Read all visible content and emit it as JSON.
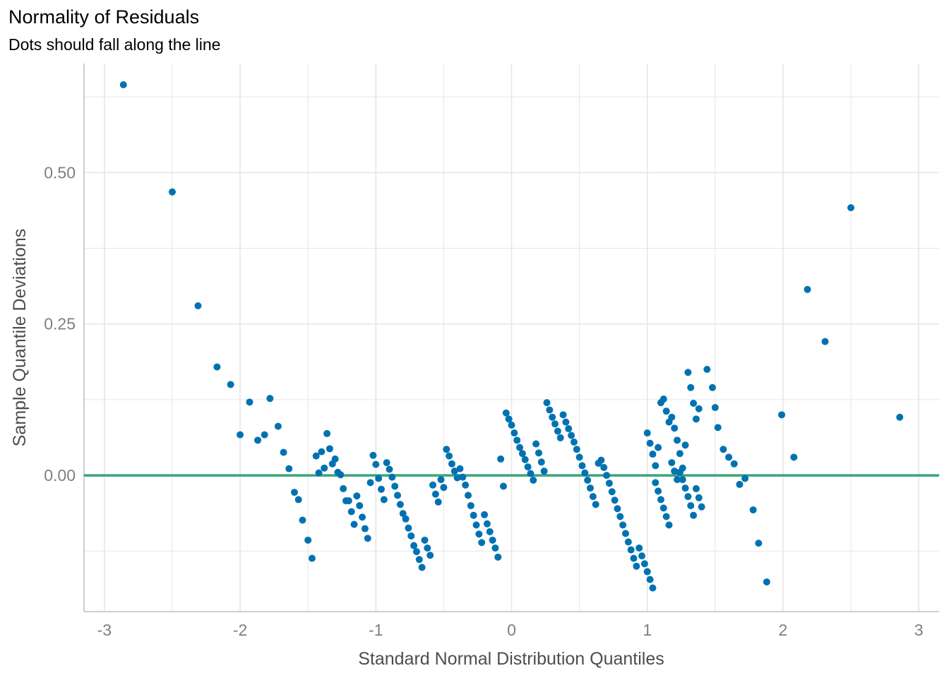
{
  "chart": {
    "title": "Normality of Residuals",
    "subtitle": "Dots should fall along the line",
    "xlabel": "Standard Normal Distribution Quantiles",
    "ylabel": "Sample Quantile Deviations"
  },
  "colors": {
    "points": "#0072B2",
    "reference_line": "#3AA57A",
    "grid": "#E6E6E6",
    "axis": "#BDBDBD",
    "tick_text": "#7F7F7F",
    "label_text": "#4D4D4D"
  },
  "chart_data": {
    "type": "scatter",
    "title": "Normality of Residuals",
    "subtitle": "Dots should fall along the line",
    "xlabel": "Standard Normal Distribution Quantiles",
    "ylabel": "Sample Quantile Deviations",
    "xlim": [
      -3.15,
      3.15
    ],
    "ylim": [
      -0.225,
      0.68
    ],
    "x_ticks": [
      -3,
      -2,
      -1,
      0,
      1,
      2,
      3
    ],
    "x_tick_labels": [
      "-3",
      "-2",
      "-1",
      "0",
      "1",
      "2",
      "3"
    ],
    "y_ticks": [
      0.0,
      0.25,
      0.5
    ],
    "y_tick_labels": [
      "0.00",
      "0.25",
      "0.50"
    ],
    "grid": true,
    "reference_line": {
      "y": 0.0
    },
    "points": [
      [
        -2.86,
        0.645
      ],
      [
        -2.5,
        0.468
      ],
      [
        -2.31,
        0.28
      ],
      [
        -2.17,
        0.179
      ],
      [
        -2.07,
        0.15
      ],
      [
        -2.0,
        0.067
      ],
      [
        -1.93,
        0.121
      ],
      [
        -1.87,
        0.058
      ],
      [
        -1.82,
        0.067
      ],
      [
        -1.78,
        0.127
      ],
      [
        -1.72,
        0.081
      ],
      [
        -1.68,
        0.038
      ],
      [
        -1.64,
        0.011
      ],
      [
        -1.6,
        -0.028
      ],
      [
        -1.57,
        -0.04
      ],
      [
        -1.54,
        -0.074
      ],
      [
        -1.5,
        -0.107
      ],
      [
        -1.47,
        -0.137
      ],
      [
        -1.44,
        0.032
      ],
      [
        -1.42,
        0.004
      ],
      [
        -1.4,
        0.039
      ],
      [
        -1.38,
        0.012
      ],
      [
        -1.36,
        0.069
      ],
      [
        -1.34,
        0.044
      ],
      [
        -1.32,
        0.019
      ],
      [
        -1.3,
        0.027
      ],
      [
        -1.28,
        0.005
      ],
      [
        -1.26,
        0.001
      ],
      [
        -1.24,
        -0.022
      ],
      [
        -1.22,
        -0.042
      ],
      [
        -1.2,
        -0.042
      ],
      [
        -1.18,
        -0.06
      ],
      [
        -1.16,
        -0.081
      ],
      [
        -1.14,
        -0.034
      ],
      [
        -1.12,
        -0.05
      ],
      [
        -1.1,
        -0.069
      ],
      [
        -1.08,
        -0.088
      ],
      [
        -1.06,
        -0.104
      ],
      [
        -1.04,
        -0.012
      ],
      [
        -1.02,
        0.033
      ],
      [
        -1.0,
        0.018
      ],
      [
        -0.98,
        -0.005
      ],
      [
        -0.96,
        -0.023
      ],
      [
        -0.94,
        -0.04
      ],
      [
        -0.92,
        0.021
      ],
      [
        -0.9,
        0.01
      ],
      [
        -0.88,
        -0.003
      ],
      [
        -0.86,
        -0.018
      ],
      [
        -0.84,
        -0.033
      ],
      [
        -0.82,
        -0.048
      ],
      [
        -0.8,
        -0.063
      ],
      [
        -0.78,
        -0.072
      ],
      [
        -0.76,
        -0.087
      ],
      [
        -0.74,
        -0.1
      ],
      [
        -0.72,
        -0.116
      ],
      [
        -0.7,
        -0.126
      ],
      [
        -0.68,
        -0.139
      ],
      [
        -0.66,
        -0.152
      ],
      [
        -0.64,
        -0.107
      ],
      [
        -0.62,
        -0.12
      ],
      [
        -0.6,
        -0.132
      ],
      [
        -0.58,
        -0.016
      ],
      [
        -0.56,
        -0.031
      ],
      [
        -0.54,
        -0.044
      ],
      [
        -0.52,
        -0.007
      ],
      [
        -0.5,
        -0.02
      ],
      [
        -0.48,
        0.043
      ],
      [
        -0.46,
        0.032
      ],
      [
        -0.44,
        0.019
      ],
      [
        -0.42,
        0.007
      ],
      [
        -0.4,
        -0.004
      ],
      [
        -0.38,
        0.011
      ],
      [
        -0.36,
        -0.003
      ],
      [
        -0.34,
        -0.016
      ],
      [
        -0.32,
        -0.033
      ],
      [
        -0.3,
        -0.05
      ],
      [
        -0.28,
        -0.066
      ],
      [
        -0.26,
        -0.082
      ],
      [
        -0.24,
        -0.097
      ],
      [
        -0.22,
        -0.111
      ],
      [
        -0.2,
        -0.065
      ],
      [
        -0.18,
        -0.08
      ],
      [
        -0.16,
        -0.093
      ],
      [
        -0.14,
        -0.107
      ],
      [
        -0.12,
        -0.12
      ],
      [
        -0.1,
        -0.135
      ],
      [
        -0.08,
        0.027
      ],
      [
        -0.06,
        -0.018
      ],
      [
        -0.04,
        0.103
      ],
      [
        -0.02,
        0.093
      ],
      [
        0.0,
        0.083
      ],
      [
        0.02,
        0.07
      ],
      [
        0.04,
        0.058
      ],
      [
        0.06,
        0.046
      ],
      [
        0.08,
        0.036
      ],
      [
        0.1,
        0.026
      ],
      [
        0.12,
        0.014
      ],
      [
        0.14,
        0.003
      ],
      [
        0.16,
        -0.008
      ],
      [
        0.18,
        0.052
      ],
      [
        0.2,
        0.037
      ],
      [
        0.22,
        0.022
      ],
      [
        0.24,
        0.007
      ],
      [
        0.26,
        0.12
      ],
      [
        0.28,
        0.108
      ],
      [
        0.3,
        0.096
      ],
      [
        0.32,
        0.085
      ],
      [
        0.34,
        0.073
      ],
      [
        0.36,
        0.062
      ],
      [
        0.38,
        0.1
      ],
      [
        0.4,
        0.088
      ],
      [
        0.42,
        0.077
      ],
      [
        0.44,
        0.066
      ],
      [
        0.46,
        0.055
      ],
      [
        0.48,
        0.043
      ],
      [
        0.5,
        0.03
      ],
      [
        0.52,
        0.016
      ],
      [
        0.54,
        0.004
      ],
      [
        0.56,
        -0.008
      ],
      [
        0.58,
        -0.021
      ],
      [
        0.6,
        -0.035
      ],
      [
        0.62,
        -0.048
      ],
      [
        0.64,
        0.02
      ],
      [
        0.66,
        0.025
      ],
      [
        0.68,
        0.013
      ],
      [
        0.7,
        0.0
      ],
      [
        0.72,
        -0.013
      ],
      [
        0.74,
        -0.027
      ],
      [
        0.76,
        -0.041
      ],
      [
        0.78,
        -0.055
      ],
      [
        0.8,
        -0.068
      ],
      [
        0.82,
        -0.082
      ],
      [
        0.84,
        -0.096
      ],
      [
        0.86,
        -0.11
      ],
      [
        0.88,
        -0.123
      ],
      [
        0.9,
        -0.137
      ],
      [
        0.92,
        -0.15
      ],
      [
        0.94,
        -0.12
      ],
      [
        0.96,
        -0.133
      ],
      [
        0.98,
        -0.146
      ],
      [
        1.0,
        -0.159
      ],
      [
        1.02,
        -0.172
      ],
      [
        1.04,
        -0.186
      ],
      [
        1.06,
        -0.012
      ],
      [
        1.08,
        -0.026
      ],
      [
        1.1,
        -0.04
      ],
      [
        1.12,
        -0.054
      ],
      [
        1.14,
        -0.068
      ],
      [
        1.16,
        -0.082
      ],
      [
        1.18,
        0.021
      ],
      [
        1.2,
        0.007
      ],
      [
        1.22,
        -0.007
      ],
      [
        1.24,
        0.005
      ],
      [
        1.26,
        -0.007
      ],
      [
        1.28,
        -0.021
      ],
      [
        1.3,
        -0.035
      ],
      [
        1.32,
        -0.05
      ],
      [
        1.34,
        -0.066
      ],
      [
        1.36,
        -0.022
      ],
      [
        1.38,
        -0.037
      ],
      [
        1.4,
        -0.052
      ],
      [
        1.0,
        0.07
      ],
      [
        1.02,
        0.053
      ],
      [
        1.04,
        0.035
      ],
      [
        1.06,
        0.016
      ],
      [
        1.08,
        0.046
      ],
      [
        1.1,
        0.12
      ],
      [
        1.12,
        0.126
      ],
      [
        1.14,
        0.106
      ],
      [
        1.16,
        0.088
      ],
      [
        1.18,
        0.096
      ],
      [
        1.2,
        0.078
      ],
      [
        1.22,
        0.058
      ],
      [
        1.24,
        0.036
      ],
      [
        1.26,
        0.012
      ],
      [
        1.28,
        0.05
      ],
      [
        1.3,
        0.17
      ],
      [
        1.32,
        0.145
      ],
      [
        1.34,
        0.119
      ],
      [
        1.36,
        0.093
      ],
      [
        1.38,
        0.11
      ],
      [
        1.44,
        0.175
      ],
      [
        1.48,
        0.145
      ],
      [
        1.5,
        0.112
      ],
      [
        1.52,
        0.079
      ],
      [
        1.56,
        0.043
      ],
      [
        1.6,
        0.03
      ],
      [
        1.64,
        0.019
      ],
      [
        1.68,
        -0.015
      ],
      [
        1.72,
        -0.005
      ],
      [
        1.78,
        -0.057
      ],
      [
        1.82,
        -0.112
      ],
      [
        1.88,
        -0.176
      ],
      [
        1.99,
        0.1
      ],
      [
        2.08,
        0.03
      ],
      [
        2.18,
        0.307
      ],
      [
        2.31,
        0.221
      ],
      [
        2.5,
        0.442
      ],
      [
        2.86,
        0.096
      ]
    ]
  }
}
